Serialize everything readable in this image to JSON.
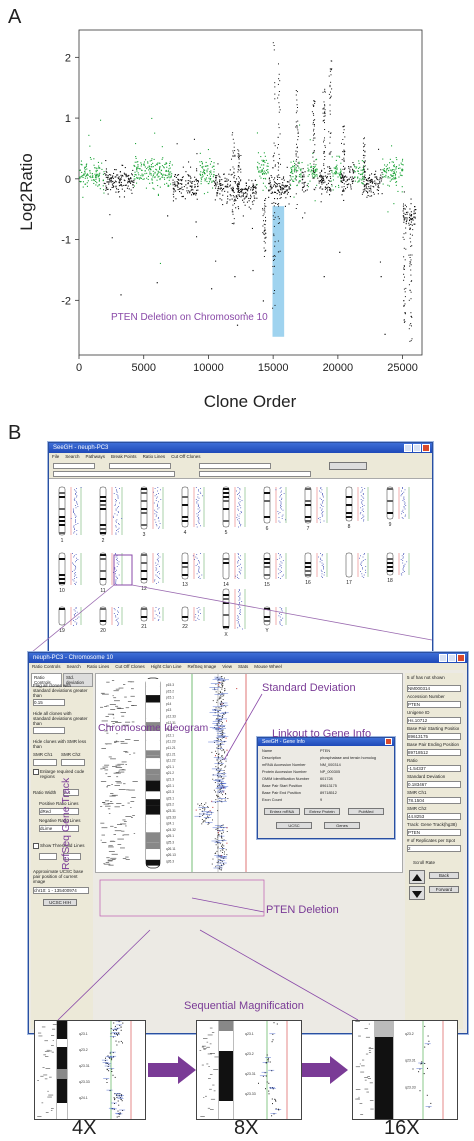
{
  "panel_a_letter": "A",
  "panel_b_letter": "B",
  "chart_data": {
    "type": "scatter",
    "xlabel": "Clone Order",
    "ylabel": "Log2Ratio",
    "xlim": [
      0,
      26500
    ],
    "ylim": [
      -2.9,
      2.45
    ],
    "xticks": [
      0,
      5000,
      10000,
      15000,
      20000,
      25000
    ],
    "xtick_labels": [
      "0",
      "5000",
      "10000",
      "15000",
      "20000",
      "25000"
    ],
    "yticks": [
      -2,
      -1,
      0,
      1,
      2
    ],
    "ytick_labels": [
      "-2",
      "-1",
      "0",
      "1",
      "2"
    ],
    "grid": false,
    "series": [
      {
        "color": "#1fa53a",
        "segments": [
          [
            0,
            1900,
            0.08
          ],
          [
            4200,
            7200,
            0.12
          ],
          [
            9200,
            10400,
            0.1
          ],
          [
            13700,
            14600,
            0.15
          ],
          [
            16300,
            17200,
            0.1
          ],
          [
            17600,
            18400,
            0.12
          ],
          [
            19400,
            20200,
            0.1
          ],
          [
            21200,
            22000,
            0.12
          ],
          [
            23400,
            25000,
            0.1
          ]
        ]
      },
      {
        "color": "#111111",
        "segments": [
          [
            1900,
            4200,
            -0.02
          ],
          [
            7200,
            9200,
            -0.1
          ],
          [
            10400,
            11600,
            -0.1
          ],
          [
            11600,
            13700,
            -0.2
          ],
          [
            14600,
            16300,
            -0.15
          ],
          [
            17200,
            17600,
            -0.05
          ],
          [
            18400,
            19400,
            -0.05
          ],
          [
            20200,
            21200,
            0.0
          ],
          [
            22000,
            23400,
            -0.05
          ],
          [
            25000,
            26000,
            -0.6
          ]
        ]
      }
    ],
    "highlight": {
      "x0": 14950,
      "x1": 15850,
      "y0": -2.6,
      "y1": -0.45,
      "color": "#9fd3ef"
    },
    "annotation": "PTEN Deletion on Chromosome 10"
  },
  "screens": {
    "main_title": "SeeGH - neuph-PC3",
    "main_menu": [
      "File",
      "Search",
      "Pathways",
      "Break Points",
      "Ratio Lines",
      "Cut Off Clones"
    ],
    "chrom_labels": [
      "1",
      "2",
      "3",
      "4",
      "5",
      "6",
      "7",
      "8",
      "9",
      "10",
      "11",
      "12",
      "13",
      "14",
      "15",
      "16",
      "17",
      "18",
      "19",
      "20",
      "21",
      "22",
      "X",
      "Y"
    ],
    "zoom_title": "neuph-PC3 - Chromosome 10",
    "zoom_menu": [
      "Ratio Controls",
      "Search",
      "Ratio Lines",
      "Cut Off Clones",
      "Hight Clon Line",
      "RefSeq Image",
      "View",
      "Stats",
      "Mouse Wheel"
    ],
    "tabs": [
      "Ratio Controls",
      "Std. deviation"
    ],
    "controls": {
      "flag_clones": "Flag all clones with standard deviations greater than",
      "flag_value": "0.15",
      "hide_clones": "Hide all clones with standard deviations greater than",
      "hide_smr": "Hide clones with SMR less than",
      "smr_ch1": "SMR Ch1",
      "smr_ch2": "SMR Ch2",
      "enlarge": "Enlarge required code regions",
      "ratio_width": "Ratio Width",
      "ratio_width_value": "2.4",
      "positive_lines": "Positive Ratio Lines",
      "positive_value": "dRed",
      "negative_lines": "Negative Ratio Lines",
      "negative_value": "dLime",
      "show_threshold": "Show Threshold Lines",
      "ucsc_label": "Approximate UCSC base pair position of current image",
      "ucsc_value": "chr10: 1 - 135400974",
      "ucsc_button": "UCSC HIH"
    },
    "right_fields": [
      "NM000314",
      "Accession Number",
      "PTEN",
      "Unigene ID",
      "Hs.10712",
      "Base Pair Starting Position",
      "89613175",
      "Base Pair Ending Position",
      "89718512",
      "Ratio",
      "-1.54337",
      "Standard Deviation",
      "0.183467",
      "SMR Ch1",
      "78.1504",
      "SMR Ch2",
      "44.8253",
      "Track: Gene Track(hg38)",
      "PTEN",
      "# of Replicates per Spot",
      "2"
    ],
    "right_header": "5 of has not shown",
    "scroll_rate": "Scroll Rate",
    "back_button": "Back",
    "forward_button": "Forward",
    "gene_info": {
      "title": "SeeGH - Gene Info",
      "rows": [
        [
          "Name",
          "PTEN"
        ],
        [
          "Description",
          "phosphatase and tensin homolog"
        ],
        [
          "mRNA Accession Number",
          "NM_000314"
        ],
        [
          "Protein Accession Number",
          "NP_000305"
        ],
        [
          "OMIM Identification Number",
          "601728"
        ],
        [
          "Base Pair Start Position",
          "89613175"
        ],
        [
          "Base Pair End Position",
          "89718512"
        ],
        [
          "Exon Count",
          "9"
        ]
      ],
      "buttons": [
        "Entrez mRNA",
        "Entrez Protein",
        "PubMed",
        "UCSC",
        "Genes"
      ]
    },
    "band_labels": [
      "p15.3",
      "p15.2",
      "p15.1",
      "p14",
      "p13",
      "p12.33",
      "p12.31",
      "p12.2",
      "p12.1",
      "p11.23",
      "p11.21",
      "q11.21",
      "q11.22",
      "q21.1",
      "q21.2",
      "q21.3",
      "q22.1",
      "q22.3",
      "q23.1",
      "q23.2",
      "q23.31",
      "q23.33",
      "q24.1",
      "q24.32",
      "q25.1",
      "q25.3",
      "q26.11",
      "q26.13",
      "q26.3"
    ]
  },
  "callouts": {
    "standard_deviation": "Standard Deviation",
    "chromosome_ideogram": "Chromosome Ideogram",
    "linkout": "Linkout to Gene Info",
    "refseq_track": "RefSeq Gene Track",
    "pten_deletion": "PTEN Deletion",
    "sequential": "Sequential Magnification"
  },
  "magnification": {
    "levels": [
      "4X",
      "8X",
      "16X"
    ],
    "band_labels": [
      [
        "q23.1",
        "q23.2",
        "q23.31",
        "q23.33",
        "q24.1"
      ],
      [
        "q23.1",
        "q23.2",
        "q23.31",
        "q23.33"
      ],
      [
        "q23.2",
        "q23.31",
        "q23.33"
      ]
    ]
  },
  "colors": {
    "ideogram_purple": "#7a3b96",
    "highlight_blue": "#9fd3ef",
    "window_blue": "#1e49b8",
    "green_data": "#1fa53a"
  }
}
